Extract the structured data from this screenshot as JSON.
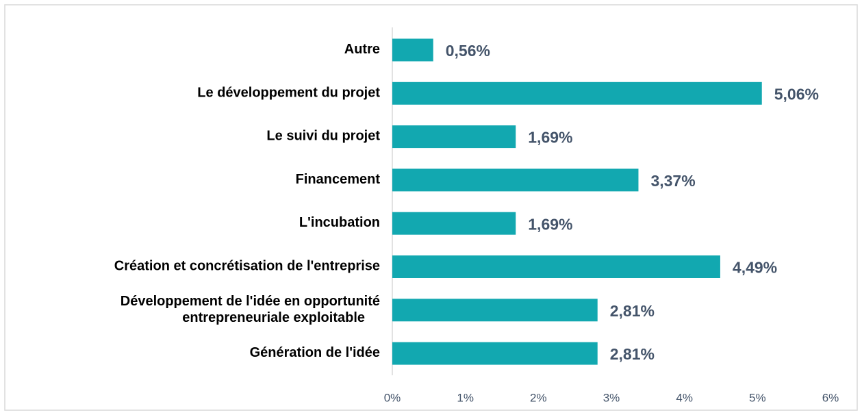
{
  "chart_data": {
    "type": "hbar",
    "categories": [
      "Autre",
      "Le développement du projet",
      "Le suivi du projet",
      "Financement",
      "L'incubation",
      "Création et concrétisation de l'entreprise",
      "Développement de l'idée en opportunité\nentrepreneuriale exploitable",
      "Génération de l'idée"
    ],
    "values": [
      0.56,
      5.06,
      1.69,
      3.37,
      1.69,
      4.49,
      2.81,
      2.81
    ],
    "value_labels": [
      "0,56%",
      "5,06%",
      "1,69%",
      "3,37%",
      "1,69%",
      "4,49%",
      "2,81%",
      "2,81%"
    ],
    "color": "#12a8b0",
    "xlim": [
      0,
      6
    ],
    "xticks": [
      {
        "value": 0,
        "label": "0%"
      },
      {
        "value": 1,
        "label": "1%"
      },
      {
        "value": 2,
        "label": "2%"
      },
      {
        "value": 3,
        "label": "3%"
      },
      {
        "value": 4,
        "label": "4%"
      },
      {
        "value": 5,
        "label": "5%"
      },
      {
        "value": 6,
        "label": "6%"
      }
    ],
    "grid": false
  }
}
